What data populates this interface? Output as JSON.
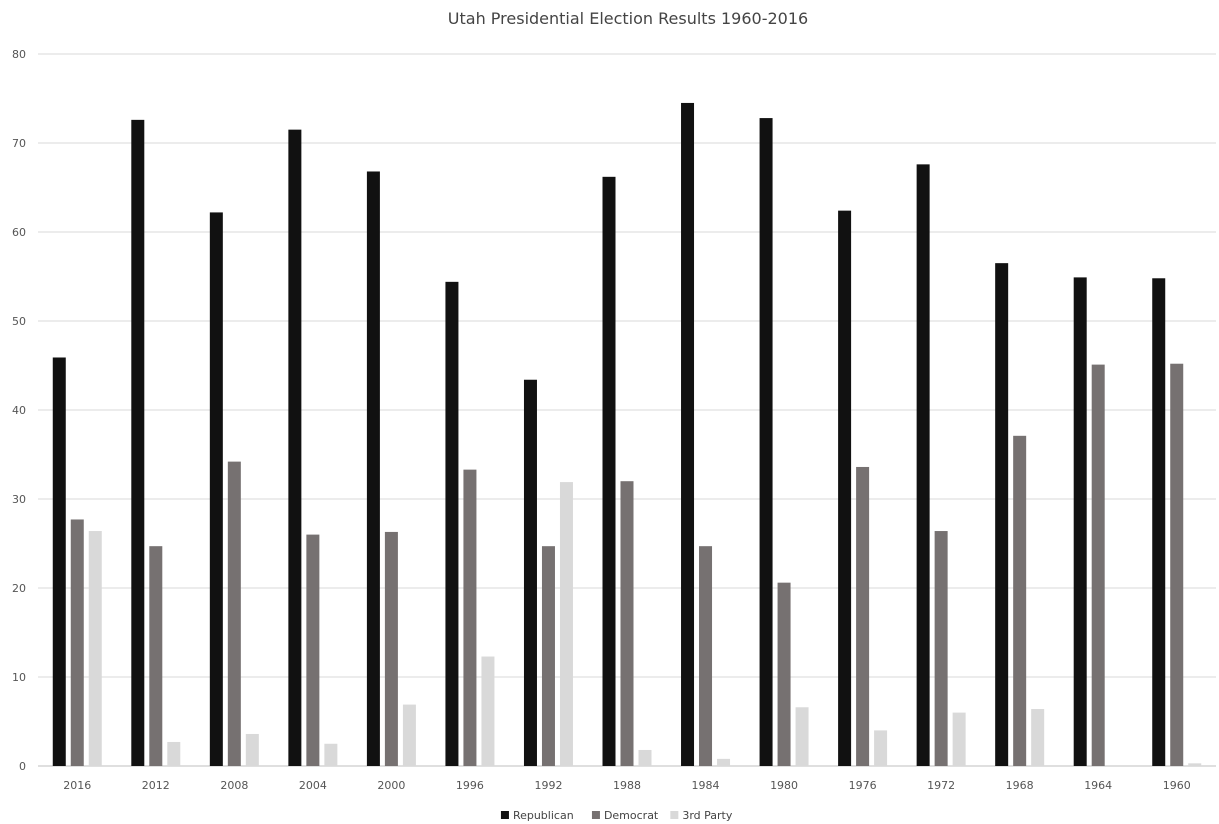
{
  "chart_data": {
    "type": "bar",
    "title": "Utah Presidential  Election Results 1960-2016",
    "xlabel": "",
    "ylabel": "",
    "ylim": [
      0,
      80
    ],
    "yticks": [
      0,
      10,
      20,
      30,
      40,
      50,
      60,
      70,
      80
    ],
    "grid": true,
    "legend_position": "bottom",
    "categories": [
      "2016",
      "2012",
      "2008",
      "2004",
      "2000",
      "1996",
      "1992",
      "1988",
      "1984",
      "1980",
      "1976",
      "1972",
      "1968",
      "1964",
      "1960"
    ],
    "series": [
      {
        "name": "Republican",
        "color": "#111111",
        "values": [
          45.9,
          72.6,
          62.2,
          71.5,
          66.8,
          54.4,
          43.4,
          66.2,
          74.5,
          72.8,
          62.4,
          67.6,
          56.5,
          54.9,
          54.8
        ]
      },
      {
        "name": "Democrat",
        "color": "#767171",
        "values": [
          27.7,
          24.7,
          34.2,
          26.0,
          26.3,
          33.3,
          24.7,
          32.0,
          24.7,
          20.6,
          33.6,
          26.4,
          37.1,
          45.1,
          45.2
        ]
      },
      {
        "name": "3rd Party",
        "color": "#d9d9d9",
        "values": [
          26.4,
          2.7,
          3.6,
          2.5,
          6.9,
          12.3,
          31.9,
          1.8,
          0.8,
          6.6,
          4.0,
          6.0,
          6.4,
          0.0,
          0.3
        ]
      }
    ]
  }
}
